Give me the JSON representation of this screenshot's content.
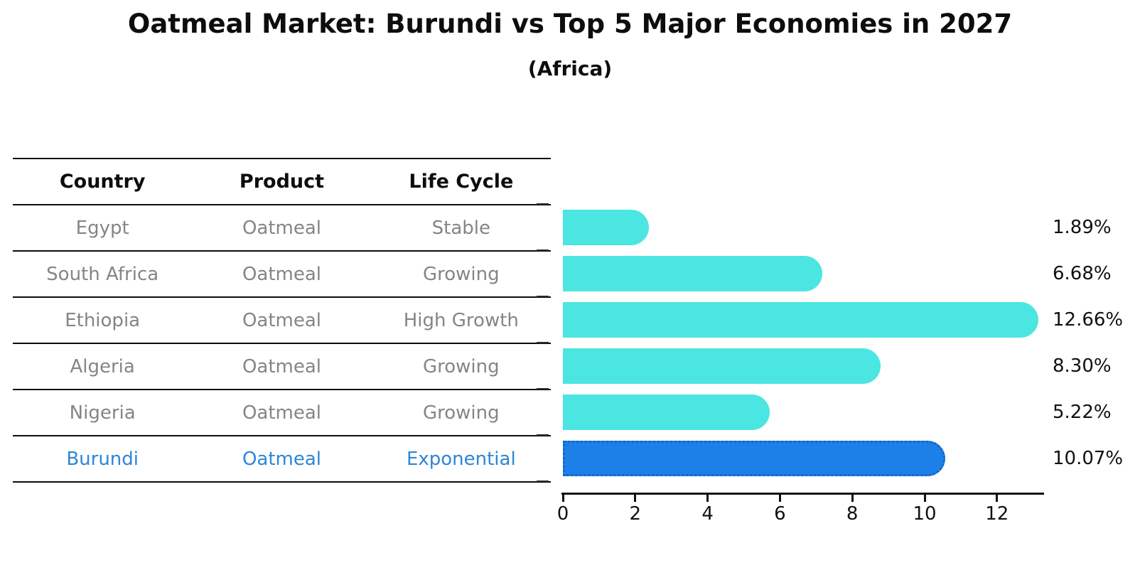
{
  "header": {
    "title": "Oatmeal Market: Burundi vs Top 5 Major Economies in 2027",
    "subtitle": "(Africa)"
  },
  "table": {
    "columns": [
      "Country",
      "Product",
      "Life Cycle"
    ],
    "rows": [
      {
        "country": "Egypt",
        "product": "Oatmeal",
        "life_cycle": "Stable",
        "highlight": false
      },
      {
        "country": "South Africa",
        "product": "Oatmeal",
        "life_cycle": "Growing",
        "highlight": false
      },
      {
        "country": "Ethiopia",
        "product": "Oatmeal",
        "life_cycle": "High Growth",
        "highlight": false
      },
      {
        "country": "Algeria",
        "product": "Oatmeal",
        "life_cycle": "Growing",
        "highlight": false
      },
      {
        "country": "Nigeria",
        "product": "Oatmeal",
        "life_cycle": "Growing",
        "highlight": false
      },
      {
        "country": "Burundi",
        "product": "Oatmeal",
        "life_cycle": "Exponential",
        "highlight": true
      }
    ]
  },
  "chart_data": {
    "type": "bar",
    "orientation": "horizontal",
    "title": "Oatmeal Market: Burundi vs Top 5 Major Economies in 2027",
    "subtitle": "(Africa)",
    "categories": [
      "Egypt",
      "South Africa",
      "Ethiopia",
      "Algeria",
      "Nigeria",
      "Burundi"
    ],
    "values": [
      1.89,
      6.68,
      12.66,
      8.3,
      5.22,
      10.07
    ],
    "value_labels": [
      "1.89%",
      "6.68%",
      "12.66%",
      "8.30%",
      "5.22%",
      "10.07%"
    ],
    "xticks": [
      0,
      2,
      4,
      6,
      8,
      10,
      12
    ],
    "xlim": [
      0,
      13.3
    ],
    "grid": false,
    "legend": false,
    "highlight_index": 5,
    "colors": {
      "bar": "#4be6e1",
      "highlight_bar": "#1c80e8",
      "highlight_border": "#1565c8",
      "row_text": "#858585",
      "highlight_text": "#2e86d6",
      "axis": "#111111",
      "value_label": "#111111"
    }
  }
}
